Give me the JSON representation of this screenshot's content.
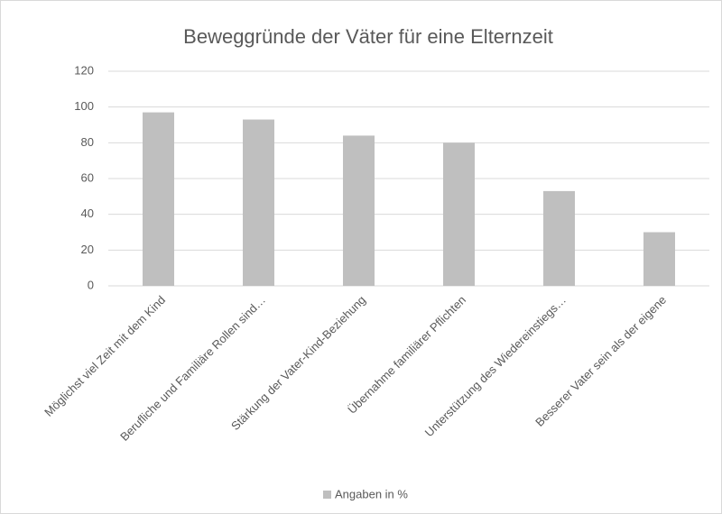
{
  "chart_data": {
    "type": "bar",
    "title": "Beweggründe der Väter für eine Elternzeit",
    "categories": [
      "Möglichst viel Zeit mit dem Kind",
      "Berufliche und Familiäre Rollen sind…",
      "Stärkung der Vater-Kind-Beziehung",
      "Übernahme familiärer Pflichten",
      "Unterstützung des Wiedereinstiegs…",
      "Besserer Vater sein als der eigene"
    ],
    "series": [
      {
        "name": "Angaben in %",
        "color": "#bfbfbf",
        "values": [
          97,
          93,
          84,
          80,
          53,
          30
        ]
      }
    ],
    "ylim": [
      0,
      120
    ],
    "yticks": [
      0,
      20,
      40,
      60,
      80,
      100,
      120
    ],
    "grid": true,
    "legend": "bottom"
  }
}
